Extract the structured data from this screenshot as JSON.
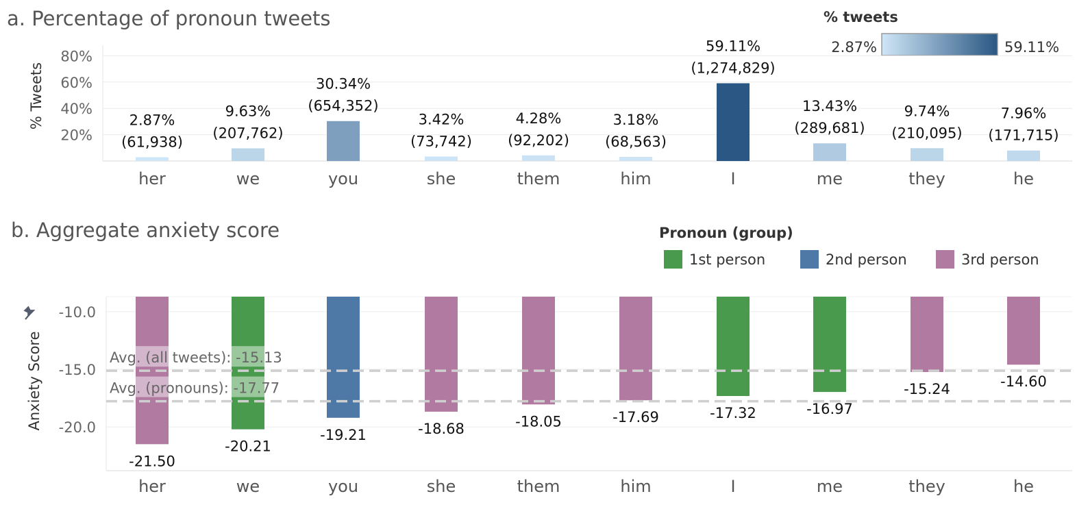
{
  "chart_data": [
    {
      "type": "bar",
      "title": "a. Percentage of pronoun tweets",
      "ylabel": "% Tweets",
      "xlabel": "",
      "y_ticks": [
        "80%",
        "60%",
        "40%",
        "20%"
      ],
      "ylim": [
        0,
        100
      ],
      "categories": [
        "her",
        "we",
        "you",
        "she",
        "them",
        "him",
        "I",
        "me",
        "they",
        "he"
      ],
      "values": [
        2.87,
        9.63,
        30.34,
        3.42,
        4.28,
        3.18,
        59.11,
        13.43,
        9.74,
        7.96
      ],
      "percent_labels": [
        "2.87%",
        "9.63%",
        "30.34%",
        "3.42%",
        "4.28%",
        "3.18%",
        "59.11%",
        "13.43%",
        "9.74%",
        "7.96%"
      ],
      "count_labels": [
        "(61,938)",
        "(207,762)",
        "(654,352)",
        "(73,742)",
        "(92,202)",
        "(68,563)",
        "(1,274,829)",
        "(289,681)",
        "(210,095)",
        "(171,715)"
      ],
      "color_legend": {
        "title": "% tweets",
        "min_label": "2.87%",
        "max_label": "59.11%",
        "min_value": 2.87,
        "max_value": 59.11,
        "color_low": "#cfe6f7",
        "color_high": "#2a5783"
      },
      "grid": true
    },
    {
      "type": "bar",
      "title": "b. Aggregate anxiety score",
      "ylabel": "Anxiety Score",
      "xlabel": "",
      "y_ticks": [
        "-10.0",
        "-15.0",
        "-20.0"
      ],
      "ylim": [
        -8.7,
        -23.8
      ],
      "baseline": -8.7,
      "categories": [
        "her",
        "we",
        "you",
        "she",
        "them",
        "him",
        "I",
        "me",
        "they",
        "he"
      ],
      "values": [
        -21.5,
        -20.21,
        -19.21,
        -18.68,
        -18.05,
        -17.69,
        -17.32,
        -16.97,
        -15.24,
        -14.6
      ],
      "labels": [
        "-21.50",
        "-20.21",
        "-19.21",
        "-18.68",
        "-18.05",
        "-17.69",
        "-17.32",
        "-16.97",
        "-15.24",
        "-14.60"
      ],
      "groups": [
        "3rd person",
        "1st person",
        "2nd person",
        "3rd person",
        "3rd person",
        "3rd person",
        "1st person",
        "1st person",
        "3rd person",
        "3rd person"
      ],
      "legend": {
        "title": "Pronoun (group)",
        "entries": [
          {
            "name": "1st person",
            "color": "#4a9a4e"
          },
          {
            "name": "2nd person",
            "color": "#4e79a7"
          },
          {
            "name": "3rd person",
            "color": "#b07aa1"
          }
        ]
      },
      "reference_lines": [
        {
          "label": "Avg. (all tweets): -15.13",
          "value": -15.13
        },
        {
          "label": "Avg. (pronouns): -17.77",
          "value": -17.77
        }
      ],
      "grid": true
    }
  ],
  "icons": {
    "pin": "pin-icon"
  }
}
